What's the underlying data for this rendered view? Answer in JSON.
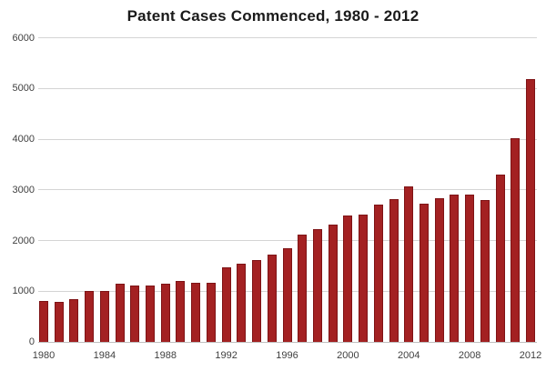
{
  "chart_data": {
    "type": "bar",
    "title": "Patent Cases Commenced, 1980 - 2012",
    "xlabel": "",
    "ylabel": "",
    "categories": [
      "1980",
      "1981",
      "1982",
      "1983",
      "1984",
      "1985",
      "1986",
      "1987",
      "1988",
      "1989",
      "1990",
      "1991",
      "1992",
      "1993",
      "1994",
      "1995",
      "1996",
      "1997",
      "1998",
      "1999",
      "2000",
      "2001",
      "2002",
      "2003",
      "2004",
      "2005",
      "2006",
      "2007",
      "2008",
      "2009",
      "2010",
      "2011",
      "2012"
    ],
    "values": [
      800,
      790,
      840,
      1000,
      1010,
      1145,
      1105,
      1115,
      1150,
      1200,
      1170,
      1160,
      1475,
      1550,
      1620,
      1720,
      1840,
      2110,
      2220,
      2320,
      2485,
      2520,
      2700,
      2815,
      3075,
      2720,
      2830,
      2900,
      2910,
      2790,
      3300,
      4015,
      5190
    ],
    "ylim": [
      0,
      6000
    ],
    "y_ticks": [
      0,
      1000,
      2000,
      3000,
      4000,
      5000,
      6000
    ],
    "x_tick_labels": [
      "1980",
      "1984",
      "1988",
      "1992",
      "1996",
      "2000",
      "2004",
      "2008",
      "2012"
    ],
    "x_tick_step": 4,
    "grid": "horizontal",
    "legend": "none",
    "colors": {
      "bar_fill": "#a32122",
      "bar_border": "#7e1315",
      "gridline": "#d4d4d4",
      "baseline": "#c0c0c0",
      "tick_text": "#3f3f3f",
      "title_text": "#1a1a1a",
      "background": "#ffffff"
    }
  }
}
